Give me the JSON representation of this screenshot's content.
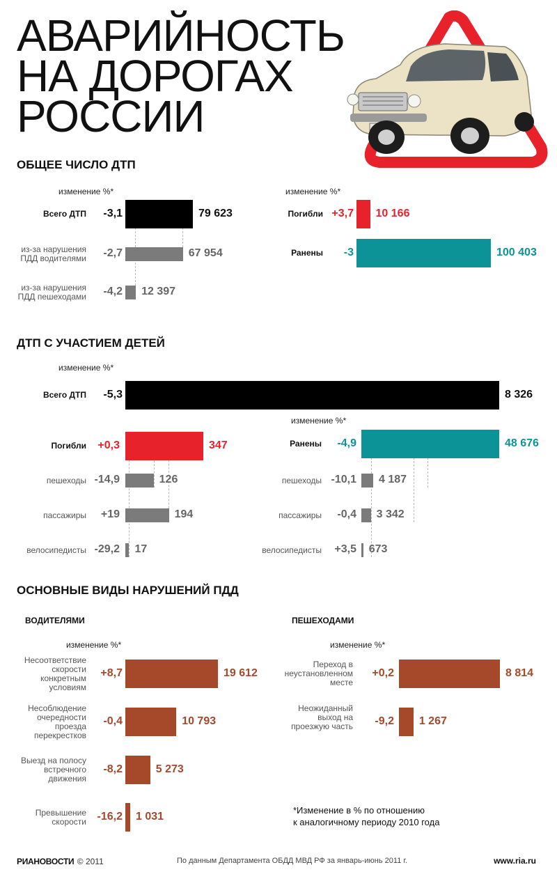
{
  "title": [
    "АВАРИЙНОСТЬ",
    "НА ДОРОГАХ",
    "РОССИИ"
  ],
  "change_label": "изменение %*",
  "colors": {
    "black": "#000000",
    "gray": "#7b7b7b",
    "red": "#e8222b",
    "teal": "#0c9397",
    "brown": "#a5492a"
  },
  "chart_data": [
    {
      "type": "bar",
      "title": "ОБЩЕЕ ЧИСЛО ДТП",
      "categories": [
        "Всего ДТП",
        "из-за нарушения ПДД водителями",
        "из-за нарушения ПДД пешеходами"
      ],
      "values": [
        79623,
        67954,
        12397
      ],
      "value_labels": [
        "79 623",
        "67 954",
        "12 397"
      ],
      "change": [
        "-3,1",
        "-2,7",
        "-4,2"
      ]
    },
    {
      "type": "bar",
      "title": "",
      "categories": [
        "Погибли",
        "Ранены"
      ],
      "values": [
        10166,
        100403
      ],
      "value_labels": [
        "10 166",
        "100 403"
      ],
      "change": [
        "+3,7",
        "-3"
      ]
    },
    {
      "type": "bar",
      "title": "ДТП С УЧАСТИЕМ ДЕТЕЙ",
      "categories": [
        "Всего ДТП"
      ],
      "values": [
        8326
      ],
      "value_labels": [
        "8 326"
      ],
      "change": [
        "-5,3"
      ]
    },
    {
      "type": "bar",
      "title": "",
      "categories": [
        "Погибли",
        "пешеходы",
        "пассажиры",
        "велосипедисты"
      ],
      "values": [
        347,
        126,
        194,
        17
      ],
      "value_labels": [
        "347",
        "126",
        "194",
        "17"
      ],
      "change": [
        "+0,3",
        "-14,9",
        "+19",
        "-29,2"
      ]
    },
    {
      "type": "bar",
      "title": "",
      "categories": [
        "Ранены",
        "пешеходы",
        "пассажиры",
        "велосипедисты"
      ],
      "values": [
        48676,
        4187,
        3342,
        673
      ],
      "value_labels": [
        "48 676",
        "4 187",
        "3 342",
        "673"
      ],
      "change": [
        "-4,9",
        "-10,1",
        "-0,4",
        "+3,5"
      ]
    },
    {
      "type": "bar",
      "title": "ОСНОВНЫЕ ВИДЫ НАРУШЕНИЙ ПДД",
      "subtitle": "ВОДИТЕЛЯМИ",
      "categories": [
        "Несоответствие скорости конкретным условиям",
        "Несоблюдение очередности проезда перекрестков",
        "Выезд на полосу встречного движения",
        "Превышение скорости"
      ],
      "values": [
        19612,
        10793,
        5273,
        1031
      ],
      "value_labels": [
        "19 612",
        "10 793",
        "5 273",
        "1 031"
      ],
      "change": [
        "+8,7",
        "-0,4",
        "-8,2",
        "-16,2"
      ]
    },
    {
      "type": "bar",
      "title": "",
      "subtitle": "ПЕШЕХОДАМИ",
      "categories": [
        "Переход в неустановленном месте",
        "Неожиданный выход на проезжую часть"
      ],
      "values": [
        8814,
        1267
      ],
      "value_labels": [
        "8 814",
        "1 267"
      ],
      "change": [
        "+0,2",
        "-9,2"
      ]
    }
  ],
  "footnote": [
    "*Изменение в % по отношению",
    "к аналогичному периоду 2010 года"
  ],
  "footer": {
    "brand": "РИАНОВОСТИ",
    "copyright": "© 2011",
    "source": "По данным Департамента ОБДД МВД РФ за январь-июнь 2011 г.",
    "url": "www.ria.ru"
  }
}
